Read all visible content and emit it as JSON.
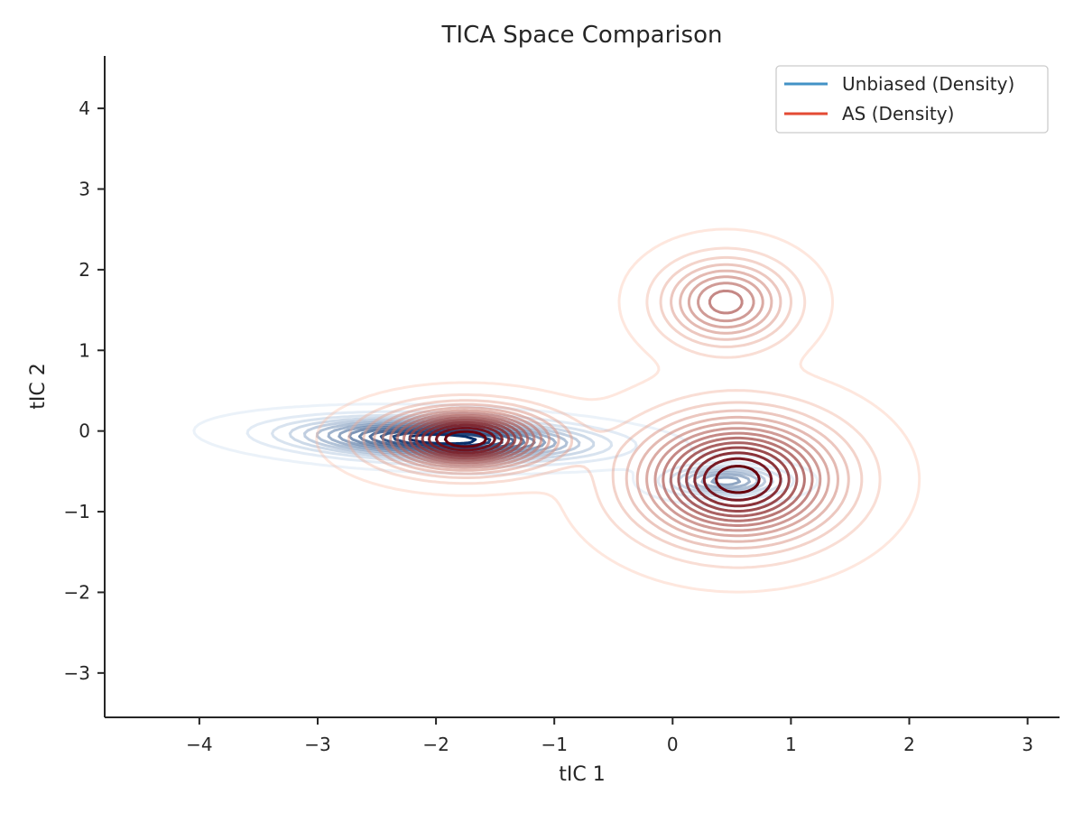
{
  "chart_data": {
    "type": "contour",
    "title": "TICA Space Comparison",
    "xlabel": "tIC 1",
    "ylabel": "tIC 2",
    "xlim": [
      -4.8,
      3.27
    ],
    "ylim": [
      -3.55,
      4.65
    ],
    "x_ticks": [
      -4,
      -3,
      -2,
      -1,
      0,
      1,
      2,
      3
    ],
    "x_tick_labels": [
      "−4",
      "−3",
      "−2",
      "−1",
      "0",
      "1",
      "2",
      "3"
    ],
    "y_ticks": [
      -3,
      -2,
      -1,
      0,
      1,
      2,
      3,
      4
    ],
    "y_tick_labels": [
      "−3",
      "−2",
      "−1",
      "0",
      "1",
      "2",
      "3",
      "4"
    ],
    "legend_position": "top-right",
    "grid": false,
    "series": [
      {
        "name": "Unbiased (Density)",
        "color": "#4292c6",
        "colormap": "Blues",
        "levels": 14,
        "components": [
          {
            "center": [
              -1.95,
              -0.1
            ],
            "sx": 0.75,
            "sy": 0.15,
            "rot": -0.05,
            "weight": 0.85
          },
          {
            "center": [
              0.45,
              -0.62
            ],
            "sx": 0.3,
            "sy": 0.12,
            "rot": 0,
            "weight": 0.15
          }
        ]
      },
      {
        "name": "AS (Density)",
        "color": "#e34a33",
        "colormap": "Reds",
        "levels": 14,
        "components": [
          {
            "center": [
              0.55,
              -0.6
            ],
            "sx": 0.55,
            "sy": 0.5,
            "rot": 0,
            "weight": 0.6
          },
          {
            "center": [
              -1.75,
              -0.1
            ],
            "sx": 0.45,
            "sy": 0.25,
            "rot": 0,
            "weight": 0.25
          },
          {
            "center": [
              0.45,
              1.6
            ],
            "sx": 0.35,
            "sy": 0.35,
            "rot": 0,
            "weight": 0.15
          }
        ]
      }
    ]
  }
}
